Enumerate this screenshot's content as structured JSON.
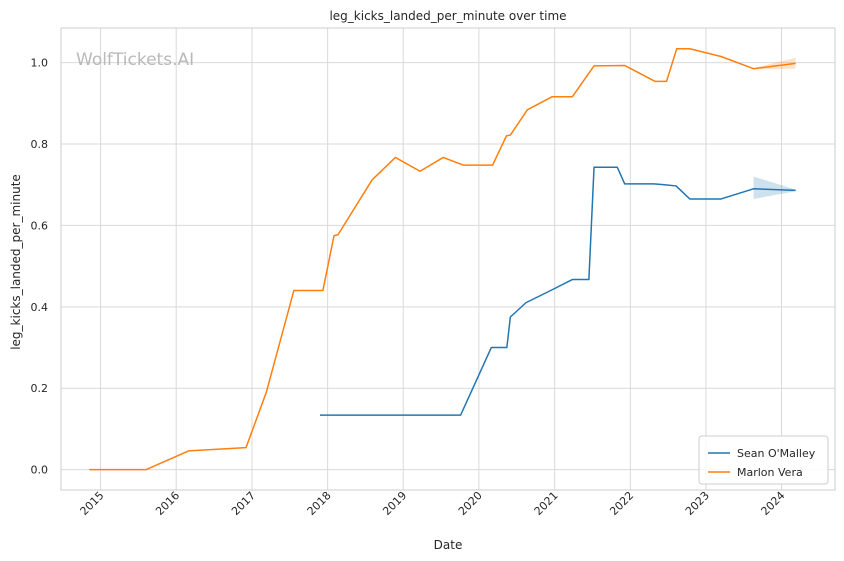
{
  "chart_data": {
    "type": "line",
    "title": "leg_kicks_landed_per_minute over time",
    "xlabel": "Date",
    "ylabel": "leg_kicks_landed_per_minute",
    "watermark": "WolfTickets.AI",
    "x_ticks": [
      "2015",
      "2016",
      "2017",
      "2018",
      "2019",
      "2020",
      "2021",
      "2022",
      "2023",
      "2024"
    ],
    "y_ticks": [
      "0.0",
      "0.2",
      "0.4",
      "0.6",
      "0.8",
      "1.0"
    ],
    "xlim": [
      "2014-06-24",
      "2024-09-15"
    ],
    "ylim": [
      -0.05,
      1.085
    ],
    "grid": true,
    "legend_position": "bottom-right",
    "series": [
      {
        "name": "Sean O'Malley",
        "color": "#1f77b4",
        "x": [
          "2017-11-25",
          "2019-10-05",
          "2020-03-01",
          "2020-05-15",
          "2020-06-01",
          "2020-08-15",
          "2021-01-01",
          "2021-03-27",
          "2021-06-15",
          "2021-07-10",
          "2021-10-30",
          "2021-12-05",
          "2022-04-25",
          "2022-06-15",
          "2022-08-10",
          "2022-10-15",
          "2023-03-15",
          "2023-08-19",
          "2024-03-09"
        ],
        "y": [
          0.134,
          0.134,
          0.3,
          0.3,
          0.375,
          0.41,
          0.445,
          0.467,
          0.467,
          0.743,
          0.743,
          0.702,
          0.702,
          0.7,
          0.697,
          0.665,
          0.665,
          0.69,
          0.686
        ],
        "band": {
          "x": [
            "2023-08-19",
            "2024-03-09"
          ],
          "upper": [
            0.72,
            0.688
          ],
          "lower": [
            0.665,
            0.684
          ]
        }
      },
      {
        "name": "Marlon Vera",
        "color": "#ff7f0e",
        "x": [
          "2014-11-08",
          "2015-08-08",
          "2016-03-01",
          "2016-12-03",
          "2017-03-11",
          "2017-07-22",
          "2017-12-09",
          "2018-02-01",
          "2018-02-20",
          "2018-08-04",
          "2018-11-24",
          "2019-03-23",
          "2019-07-13",
          "2019-10-19",
          "2020-03-07",
          "2020-05-13",
          "2020-06-01",
          "2020-08-22",
          "2020-12-19",
          "2021-03-27",
          "2021-07-10",
          "2021-12-05",
          "2022-04-30",
          "2022-06-25",
          "2022-08-13",
          "2022-10-15",
          "2023-03-15",
          "2023-08-19",
          "2024-03-09"
        ],
        "y": [
          0.0,
          0.0,
          0.046,
          0.054,
          0.19,
          0.44,
          0.44,
          0.575,
          0.577,
          0.712,
          0.767,
          0.733,
          0.767,
          0.748,
          0.748,
          0.82,
          0.822,
          0.884,
          0.916,
          0.916,
          0.992,
          0.993,
          0.954,
          0.954,
          1.034,
          1.034,
          1.015,
          0.985,
          0.998
        ],
        "band": {
          "x": [
            "2023-08-19",
            "2024-03-09"
          ],
          "upper": [
            0.987,
            1.012
          ],
          "lower": [
            0.983,
            0.985
          ]
        }
      }
    ]
  }
}
